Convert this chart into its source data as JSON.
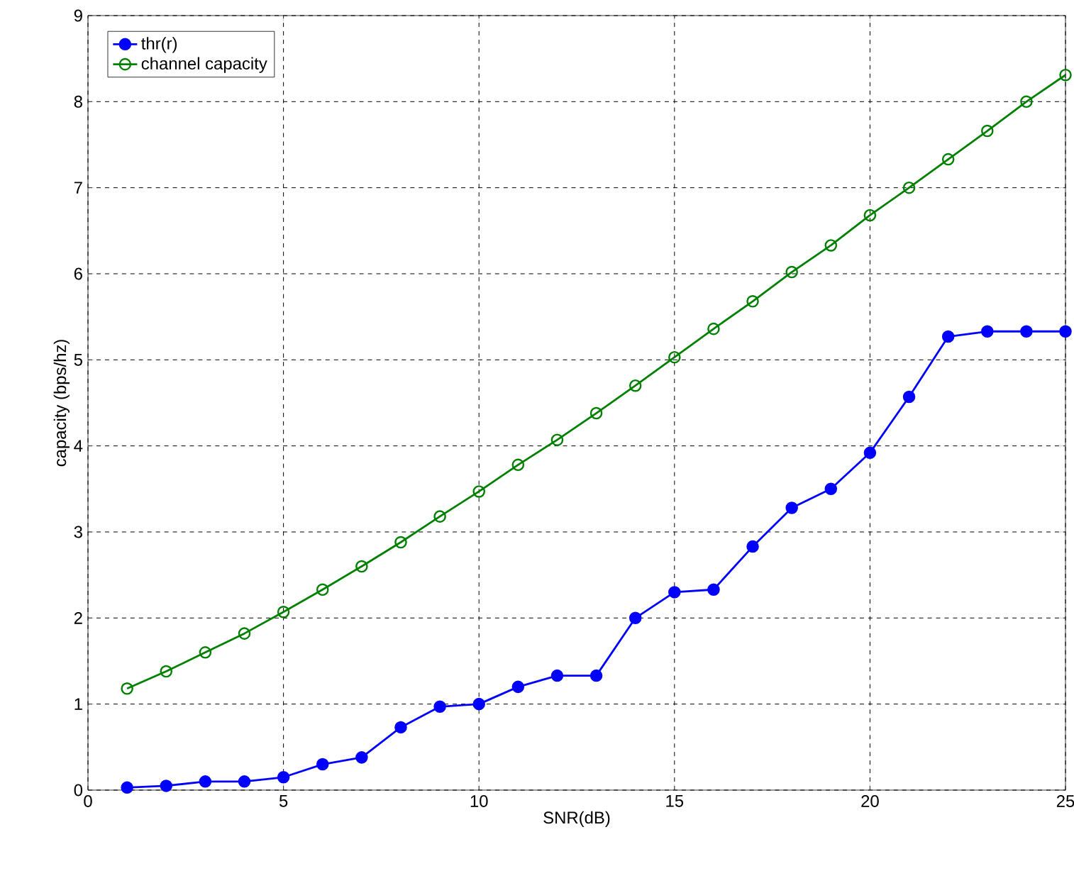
{
  "chart_data": {
    "type": "line",
    "xlabel": "SNR(dB)",
    "ylabel": "capacity (bps/hz)",
    "x": [
      1,
      2,
      3,
      4,
      5,
      6,
      7,
      8,
      9,
      10,
      11,
      12,
      13,
      14,
      15,
      16,
      17,
      18,
      19,
      20,
      21,
      22,
      23,
      24,
      25
    ],
    "series": [
      {
        "name": "thr(r)",
        "color": "#0000ff",
        "marker": "circle",
        "values": [
          0.03,
          0.05,
          0.1,
          0.1,
          0.15,
          0.3,
          0.38,
          0.73,
          0.97,
          1.0,
          1.2,
          1.33,
          1.33,
          2.0,
          2.3,
          2.33,
          2.83,
          3.28,
          3.5,
          3.92,
          4.57,
          5.27,
          5.33,
          5.33,
          5.33
        ]
      },
      {
        "name": "channel capacity",
        "color": "#008000",
        "marker": "circle",
        "values": [
          1.18,
          1.38,
          1.6,
          1.82,
          2.07,
          2.33,
          2.6,
          2.88,
          3.18,
          3.47,
          3.78,
          4.07,
          4.38,
          4.7,
          5.03,
          5.36,
          5.68,
          6.02,
          6.33,
          6.68,
          7.0,
          7.33,
          7.66,
          8.0,
          8.31
        ]
      }
    ],
    "xlim": [
      0,
      25
    ],
    "ylim": [
      0,
      9
    ],
    "xticks": [
      0,
      5,
      10,
      15,
      20,
      25
    ],
    "yticks": [
      0,
      1,
      2,
      3,
      4,
      5,
      6,
      7,
      8,
      9
    ],
    "grid": true,
    "legend": "top left",
    "line_style": "solid"
  }
}
